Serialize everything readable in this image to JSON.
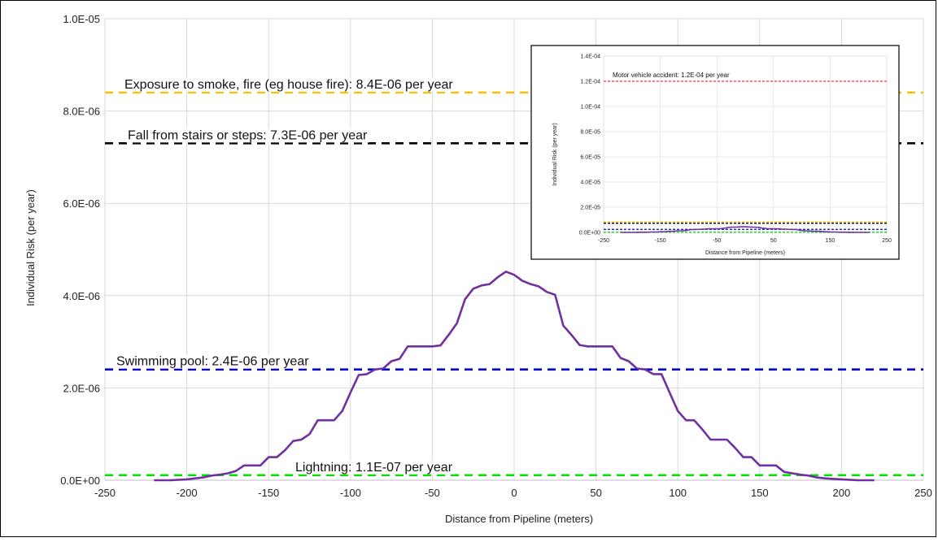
{
  "chart_data": {
    "type": "line",
    "xlabel": "Distance from Pipeline (meters)",
    "ylabel": "Individual Risk (per year)",
    "xlim": [
      -250,
      250
    ],
    "ylim": [
      0,
      1e-05
    ],
    "x_ticks": [
      "-250",
      "-200",
      "-150",
      "-100",
      "-50",
      "0",
      "50",
      "100",
      "150",
      "200",
      "250"
    ],
    "y_ticks": [
      "0.0E+00",
      "2.0E-06",
      "4.0E-06",
      "6.0E-06",
      "8.0E-06",
      "1.0E-05"
    ],
    "grid": true,
    "series": [
      {
        "color": "#7030a0",
        "x": [
          -220,
          -210,
          -200,
          -190,
          -185,
          -180,
          -175,
          -170,
          -165,
          -160,
          -155,
          -150,
          -145,
          -140,
          -135,
          -130,
          -125,
          -120,
          -115,
          -110,
          -105,
          -100,
          -95,
          -90,
          -85,
          -80,
          -75,
          -70,
          -65,
          -60,
          -55,
          -50,
          -45,
          -40,
          -35,
          -30,
          -25,
          -20,
          -15,
          -10,
          -5,
          0,
          5,
          10,
          15,
          20,
          25,
          30,
          35,
          40,
          45,
          50,
          55,
          60,
          65,
          70,
          75,
          80,
          85,
          90,
          95,
          100,
          105,
          110,
          115,
          120,
          125,
          130,
          135,
          140,
          145,
          150,
          155,
          160,
          165,
          170,
          175,
          180,
          185,
          190,
          200,
          210,
          220
        ],
        "y": [
          0,
          0,
          2e-08,
          6e-08,
          1e-07,
          1.2e-07,
          1.5e-07,
          2e-07,
          3.2e-07,
          3.2e-07,
          3.2e-07,
          5e-07,
          5e-07,
          6.5e-07,
          8.5e-07,
          8.8e-07,
          1e-06,
          1.3e-06,
          1.3e-06,
          1.3e-06,
          1.5e-06,
          1.9e-06,
          2.28e-06,
          2.3e-06,
          2.4e-06,
          2.42e-06,
          2.58e-06,
          2.63e-06,
          2.9e-06,
          2.9e-06,
          2.9e-06,
          2.9e-06,
          2.92e-06,
          3.15e-06,
          3.4e-06,
          3.92e-06,
          4.15e-06,
          4.22e-06,
          4.25e-06,
          4.4e-06,
          4.52e-06,
          4.45e-06,
          4.32e-06,
          4.25e-06,
          4.2e-06,
          4.08e-06,
          4.02e-06,
          3.35e-06,
          3.15e-06,
          2.93e-06,
          2.9e-06,
          2.9e-06,
          2.9e-06,
          2.9e-06,
          2.65e-06,
          2.58e-06,
          2.42e-06,
          2.4e-06,
          2.3e-06,
          2.3e-06,
          1.9e-06,
          1.5e-06,
          1.3e-06,
          1.3e-06,
          1.1e-06,
          8.8e-07,
          8.8e-07,
          8.8e-07,
          7e-07,
          5e-07,
          5e-07,
          3.2e-07,
          3.2e-07,
          3.2e-07,
          1.8e-07,
          1.5e-07,
          1.2e-07,
          1e-07,
          6e-08,
          4e-08,
          2e-08,
          0,
          0
        ]
      }
    ],
    "reference_lines": [
      {
        "label": "Exposure to smoke, fire (eg house fire): 8.4E-06 per year",
        "value": 8.4e-06,
        "color": "#ffc000"
      },
      {
        "label": "Fall from stairs or steps: 7.3E-06 per year",
        "value": 7.3e-06,
        "color": "#000000"
      },
      {
        "label": "Swimming pool: 2.4E-06 per year",
        "value": 2.4e-06,
        "color": "#0000cc"
      },
      {
        "label": "Lightning: 1.1E-07 per year",
        "value": 1.1e-07,
        "color": "#00e000"
      }
    ],
    "inset": {
      "type": "line",
      "xlabel": "Distance from Pipeline (meters)",
      "ylabel": "Individual Risk (per year)",
      "xlim": [
        -250,
        250
      ],
      "ylim": [
        0,
        0.00014
      ],
      "x_ticks": [
        "-250",
        "-150",
        "-50",
        "50",
        "150",
        "250"
      ],
      "y_ticks": [
        "0.0E+00",
        "2.0E-05",
        "4.0E-05",
        "6.0E-05",
        "8.0E-05",
        "1.0E-04",
        "1.2E-04",
        "1.4E-04"
      ],
      "reference_lines": [
        {
          "label": "Motor vehicle accident: 1.2E-04 per year",
          "value": 0.00012,
          "color": "#ff3333"
        },
        {
          "value": 8.4e-06,
          "color": "#ffc000"
        },
        {
          "value": 7.3e-06,
          "color": "#000000"
        },
        {
          "value": 2.4e-06,
          "color": "#0000cc"
        },
        {
          "value": 1.1e-07,
          "color": "#00e000"
        }
      ]
    }
  }
}
